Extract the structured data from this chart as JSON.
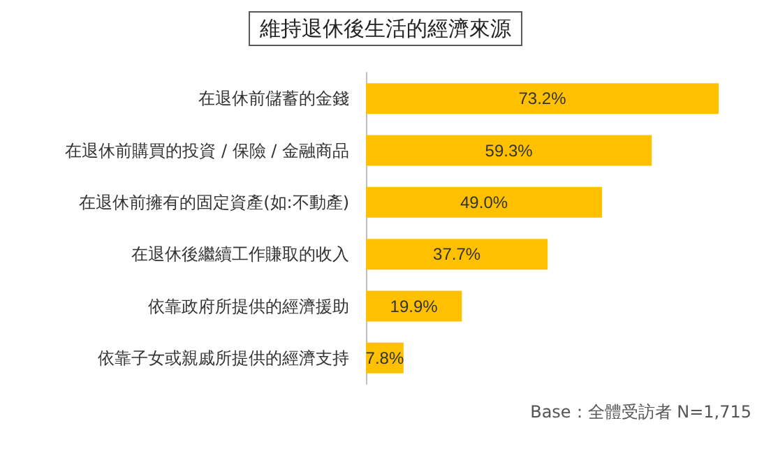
{
  "chart_data": {
    "type": "bar",
    "orientation": "horizontal",
    "title": "維持退休後生活的經濟來源",
    "categories": [
      "在退休前儲蓄的金錢",
      "在退休前購買的投資 / 保險 / 金融商品",
      "在退休前擁有的固定資產(如:不動產)",
      "在退休後繼續工作賺取的收入",
      "依靠政府所提供的經濟援助",
      "依靠子女或親戚所提供的經濟支持"
    ],
    "values": [
      73.2,
      59.3,
      49.0,
      37.7,
      19.9,
      7.8
    ],
    "value_labels": [
      "73.2%",
      "59.3%",
      "49.0%",
      "37.7%",
      "19.9%",
      "7.8%"
    ],
    "color": "#ffc000",
    "annotations": [
      "Base：全體受訪者 N=1,715"
    ]
  }
}
